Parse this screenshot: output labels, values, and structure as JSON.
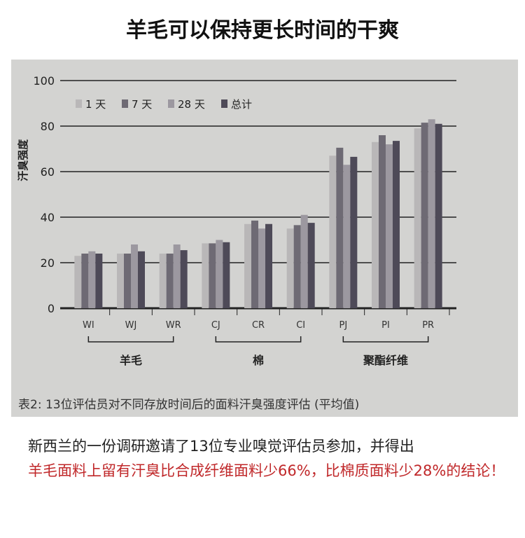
{
  "title": "羊毛可以保持更长时间的干爽",
  "chart_data": {
    "type": "bar",
    "ylabel": "汗臭强度",
    "ylim": [
      0,
      100
    ],
    "yticks": [
      0,
      20,
      40,
      60,
      80,
      100
    ],
    "grid": true,
    "legend_position": "top-left",
    "categories": [
      "WI",
      "WJ",
      "WR",
      "CJ",
      "CR",
      "CI",
      "PJ",
      "PI",
      "PR"
    ],
    "groups": [
      {
        "label": "羊毛",
        "categories": [
          "WI",
          "WJ",
          "WR"
        ]
      },
      {
        "label": "棉",
        "categories": [
          "CJ",
          "CR",
          "CI"
        ]
      },
      {
        "label": "聚酯纤维",
        "categories": [
          "PJ",
          "PI",
          "PR"
        ]
      }
    ],
    "series": [
      {
        "name": "1 天",
        "color": "#b9b7b8",
        "values": [
          23,
          24,
          24,
          28.5,
          37,
          35,
          67,
          73,
          79
        ]
      },
      {
        "name": "7 天",
        "color": "#6e6a74",
        "values": [
          24,
          24,
          24,
          28.5,
          38.5,
          36.5,
          70.5,
          76,
          81.5
        ]
      },
      {
        "name": "28 天",
        "color": "#9c98a0",
        "values": [
          25,
          28,
          28,
          30,
          35,
          41,
          63,
          72,
          83
        ]
      },
      {
        "name": "总计",
        "color": "#4e4a58",
        "values": [
          24,
          25,
          25.5,
          29,
          37,
          37.5,
          66.5,
          73.5,
          81
        ]
      }
    ],
    "caption": "表2: 13位评估员对不同存放时间后的面料汗臭强度评估 (平均值)"
  },
  "description": {
    "line1": "新西兰的一份调研邀请了13位专业嗅觉评估员参加，并得出",
    "line2_red": "羊毛面料上留有汗臭比合成纤维面料少66%，比棉质面料少28%的结论！"
  }
}
